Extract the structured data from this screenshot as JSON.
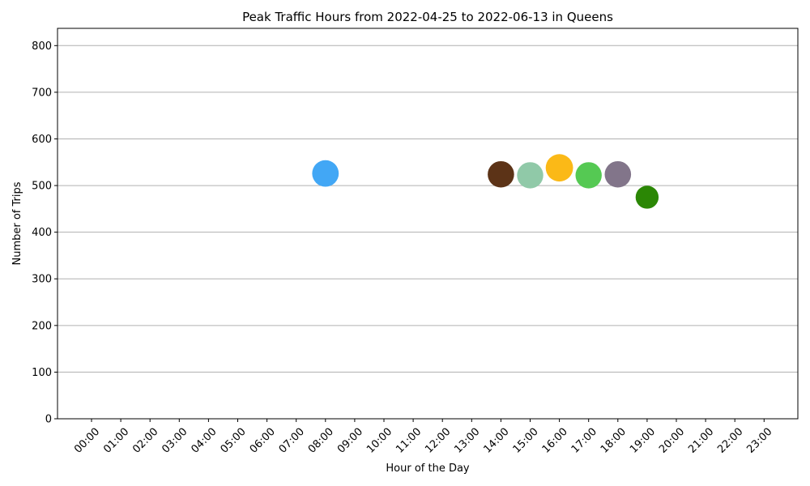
{
  "chart_data": {
    "type": "scatter",
    "title": "Peak Traffic Hours from 2022-04-25 to 2022-06-13 in Queens",
    "xlabel": "Hour of the Day",
    "ylabel": "Number of Trips",
    "x_categories": [
      "00:00",
      "01:00",
      "02:00",
      "03:00",
      "04:00",
      "05:00",
      "06:00",
      "07:00",
      "08:00",
      "09:00",
      "10:00",
      "11:00",
      "12:00",
      "13:00",
      "14:00",
      "15:00",
      "16:00",
      "17:00",
      "18:00",
      "19:00",
      "20:00",
      "21:00",
      "22:00",
      "23:00"
    ],
    "ylim": [
      0,
      837
    ],
    "yticks": [
      0,
      100,
      200,
      300,
      400,
      500,
      600,
      700,
      800
    ],
    "grid": "horizontal",
    "points": [
      {
        "x": "08:00",
        "y": 526,
        "color": "#42a7f5"
      },
      {
        "x": "14:00",
        "y": 524,
        "color": "#5c3317"
      },
      {
        "x": "15:00",
        "y": 522,
        "color": "#90c9a8"
      },
      {
        "x": "16:00",
        "y": 538,
        "color": "#fbb917"
      },
      {
        "x": "17:00",
        "y": 522,
        "color": "#55c953"
      },
      {
        "x": "18:00",
        "y": 524,
        "color": "#82758a"
      },
      {
        "x": "19:00",
        "y": 475,
        "color": "#2b8705"
      }
    ]
  }
}
